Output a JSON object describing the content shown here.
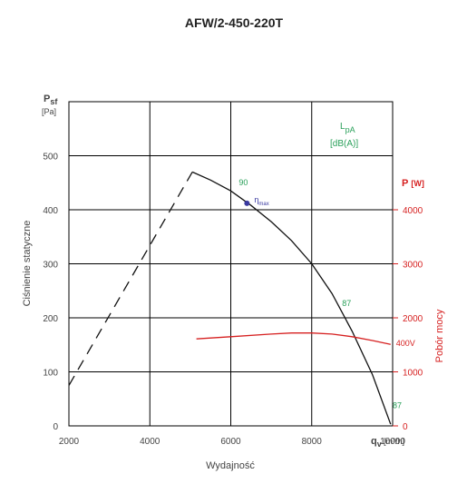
{
  "chart_data": {
    "type": "line",
    "title": "AFW/2-450-220T",
    "xlabel": "Wydajność",
    "x_unit_symbol": "q",
    "x_unit_sub": "v",
    "x_unit": "[m³/h]",
    "ylabel": "Ciśnienie statyczne",
    "y_unit_symbol": "P",
    "y_unit_sub": "sf",
    "y_unit": "[Pa]",
    "y2label": "Pobór mocy",
    "y2_unit_symbol": "P",
    "y2_unit": "[W]",
    "xlim": [
      2000,
      10000
    ],
    "ylim": [
      0,
      600
    ],
    "y2lim": [
      0,
      6000
    ],
    "xticks": [
      "2000",
      "4000",
      "6000",
      "8000",
      "10000"
    ],
    "yticks": [
      "0",
      "100",
      "200",
      "300",
      "400",
      "500"
    ],
    "y2ticks": [
      "0",
      "1000",
      "2000",
      "3000",
      "4000"
    ],
    "grid": true,
    "series": [
      {
        "axis": "left",
        "style": "dashed",
        "color": "#111111",
        "x": [
          2000,
          5050
        ],
        "y": [
          75,
          470
        ]
      },
      {
        "axis": "left",
        "style": "solid",
        "color": "#111111",
        "x": [
          5050,
          5500,
          6000,
          6500,
          7000,
          7500,
          8000,
          8500,
          9000,
          9500,
          9950
        ],
        "y": [
          470,
          455,
          435,
          408,
          378,
          343,
          300,
          245,
          175,
          95,
          3
        ]
      },
      {
        "name": "400V",
        "axis": "right",
        "style": "solid",
        "color": "#d62020",
        "x": [
          5150,
          6000,
          7000,
          7500,
          8000,
          8500,
          9000,
          9500,
          9950
        ],
        "y": [
          1610,
          1650,
          1700,
          1720,
          1720,
          1700,
          1650,
          1580,
          1510
        ]
      }
    ],
    "annotations": {
      "lpa_symbol": "L",
      "lpa_sub": "pA",
      "lpa_unit": "[dB(A)]",
      "noise_labels": [
        {
          "text": "90",
          "x": 6200,
          "y": 445
        },
        {
          "text": "87",
          "x": 8750,
          "y": 222
        },
        {
          "text": "87",
          "x": 10000,
          "y": 33
        }
      ],
      "eta_point": {
        "x": 6400,
        "y": 412
      },
      "eta_symbol": "η",
      "eta_sub": "max",
      "power_label": "400V"
    }
  }
}
